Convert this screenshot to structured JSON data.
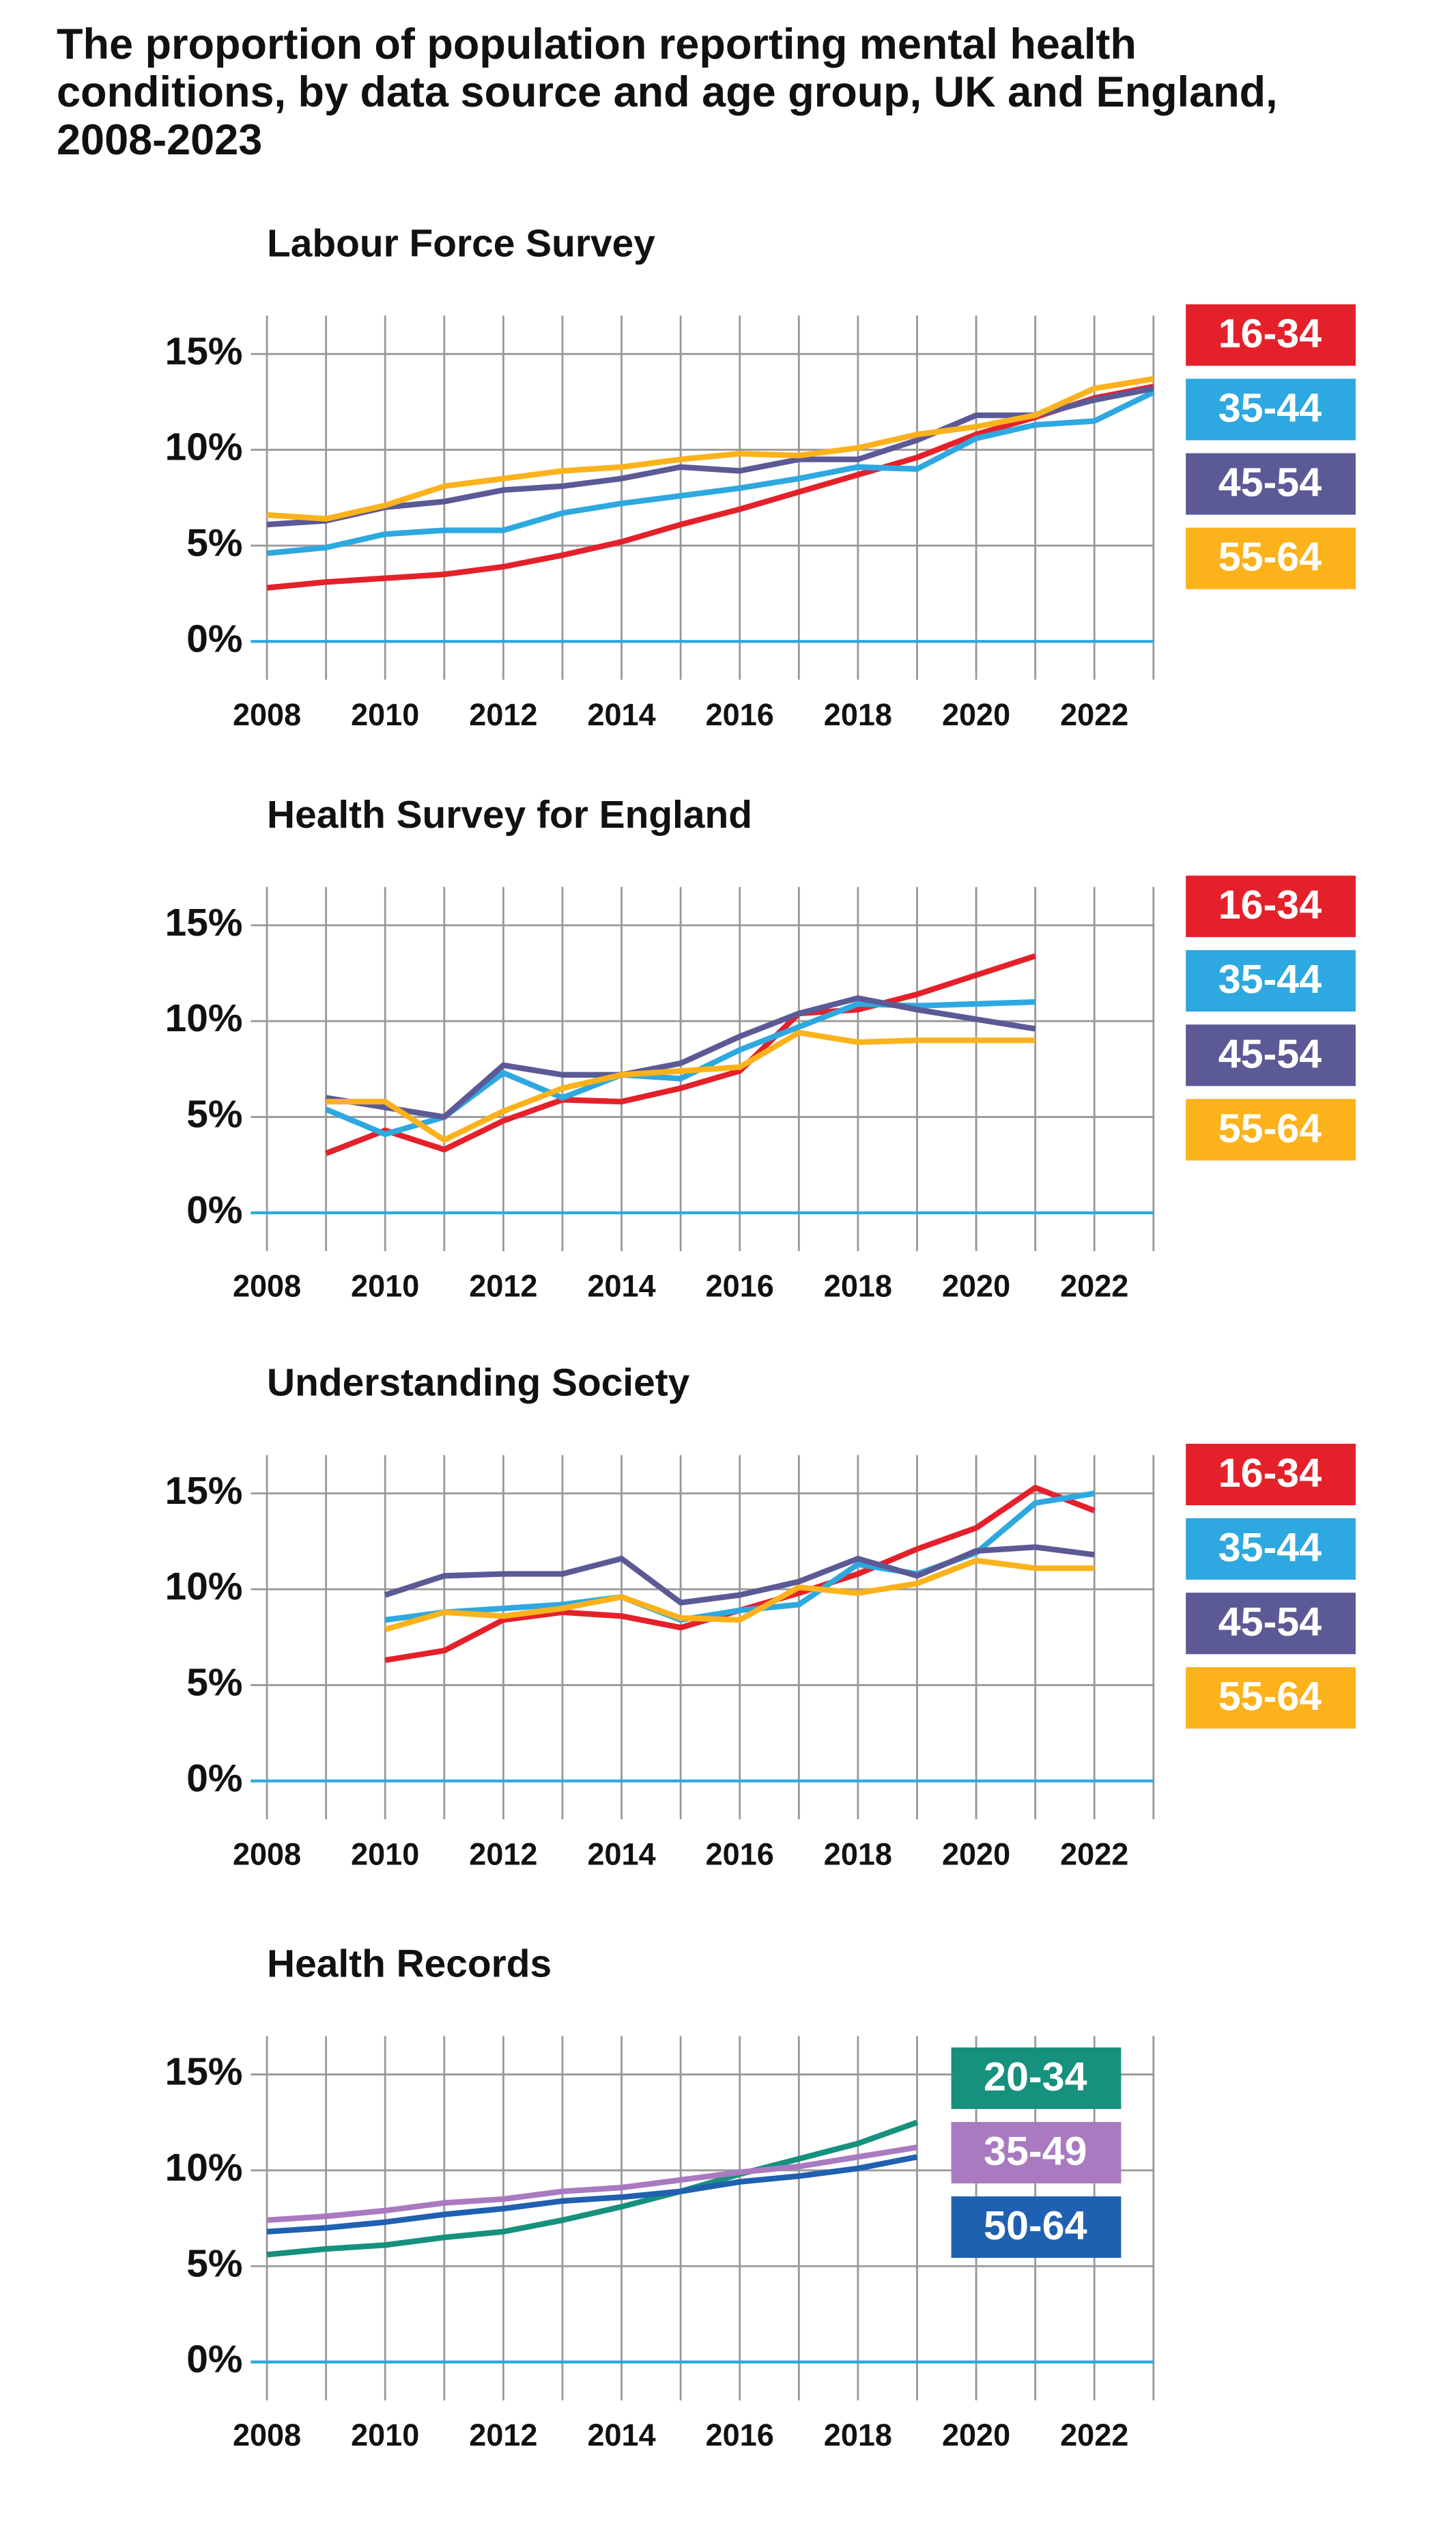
{
  "title": "The proportion of population reporting mental health conditions, by data source and age group, UK and England, 2008-2023",
  "chart_data": [
    {
      "type": "line",
      "title": "Labour Force Survey",
      "x": [
        2008,
        2009,
        2010,
        2011,
        2012,
        2013,
        2014,
        2015,
        2016,
        2017,
        2018,
        2019,
        2020,
        2021,
        2022,
        2023
      ],
      "xlim": [
        2008,
        2023
      ],
      "xticks": [
        2008,
        2010,
        2012,
        2014,
        2016,
        2018,
        2020,
        2022
      ],
      "ylim": [
        -2,
        17
      ],
      "yticks": [
        {
          "value": 0,
          "label": "0%"
        },
        {
          "value": 5,
          "label": "5%"
        },
        {
          "value": 10,
          "label": "10%"
        },
        {
          "value": 15,
          "label": "15%"
        }
      ],
      "grid": true,
      "legend": "right",
      "series": [
        {
          "name": "16-34",
          "color": "#e4212b",
          "values": [
            2.8,
            3.1,
            3.3,
            3.5,
            3.9,
            4.5,
            5.2,
            6.1,
            6.9,
            7.8,
            8.7,
            9.6,
            10.8,
            11.7,
            12.7,
            13.3
          ]
        },
        {
          "name": "35-44",
          "color": "#2ea8e0",
          "values": [
            4.6,
            4.9,
            5.6,
            5.8,
            5.8,
            6.7,
            7.2,
            7.6,
            8.0,
            8.5,
            9.1,
            9.0,
            10.6,
            11.3,
            11.5,
            13.0
          ]
        },
        {
          "name": "45-54",
          "color": "#5b5a96",
          "values": [
            6.1,
            6.3,
            7.0,
            7.3,
            7.9,
            8.1,
            8.5,
            9.1,
            8.9,
            9.5,
            9.5,
            10.5,
            11.8,
            11.8,
            12.6,
            13.2
          ]
        },
        {
          "name": "55-64",
          "color": "#fbb21b",
          "values": [
            6.6,
            6.4,
            7.1,
            8.1,
            8.5,
            8.9,
            9.1,
            9.5,
            9.8,
            9.7,
            10.1,
            10.8,
            11.2,
            11.8,
            13.2,
            13.7
          ]
        }
      ]
    },
    {
      "type": "line",
      "title": "Health Survey for England",
      "x": [
        2009,
        2010,
        2011,
        2012,
        2013,
        2014,
        2015,
        2016,
        2017,
        2018,
        2019,
        2020,
        2021
      ],
      "xlim": [
        2008,
        2023
      ],
      "xticks": [
        2008,
        2010,
        2012,
        2014,
        2016,
        2018,
        2020,
        2022
      ],
      "ylim": [
        -2,
        17
      ],
      "yticks": [
        {
          "value": 0,
          "label": "0%"
        },
        {
          "value": 5,
          "label": "5%"
        },
        {
          "value": 10,
          "label": "10%"
        },
        {
          "value": 15,
          "label": "15%"
        }
      ],
      "grid": true,
      "legend": "right",
      "series": [
        {
          "name": "16-34",
          "color": "#e4212b",
          "values": [
            3.1,
            4.3,
            3.3,
            4.8,
            5.9,
            5.8,
            6.5,
            7.4,
            10.4,
            10.6,
            11.4,
            12.4,
            13.4
          ]
        },
        {
          "name": "35-44",
          "color": "#2ea8e0",
          "values": [
            5.4,
            4.1,
            5.0,
            7.3,
            6.0,
            7.2,
            7.0,
            8.5,
            9.7,
            10.9,
            10.8,
            10.9,
            11.0
          ]
        },
        {
          "name": "45-54",
          "color": "#5b5a96",
          "values": [
            6.0,
            5.5,
            5.0,
            7.7,
            7.2,
            7.2,
            7.8,
            9.2,
            10.4,
            11.2,
            10.6,
            10.1,
            9.6
          ]
        },
        {
          "name": "55-64",
          "color": "#fbb21b",
          "values": [
            5.8,
            5.8,
            3.8,
            5.3,
            6.5,
            7.2,
            7.4,
            7.6,
            9.4,
            8.9,
            9.0,
            9.0,
            9.0
          ]
        }
      ]
    },
    {
      "type": "line",
      "title": "Understanding Society",
      "x": [
        2010,
        2011,
        2012,
        2013,
        2014,
        2015,
        2016,
        2017,
        2018,
        2019,
        2020,
        2021,
        2022
      ],
      "xlim": [
        2008,
        2023
      ],
      "xticks": [
        2008,
        2010,
        2012,
        2014,
        2016,
        2018,
        2020,
        2022
      ],
      "ylim": [
        -2,
        17
      ],
      "yticks": [
        {
          "value": 0,
          "label": "0%"
        },
        {
          "value": 5,
          "label": "5%"
        },
        {
          "value": 10,
          "label": "10%"
        },
        {
          "value": 15,
          "label": "15%"
        }
      ],
      "grid": true,
      "legend": "right",
      "series": [
        {
          "name": "16-34",
          "color": "#e4212b",
          "values": [
            6.3,
            6.8,
            8.4,
            8.8,
            8.6,
            8.0,
            8.9,
            9.8,
            10.8,
            12.1,
            13.2,
            15.3,
            14.1
          ]
        },
        {
          "name": "35-44",
          "color": "#2ea8e0",
          "values": [
            8.4,
            8.8,
            9.0,
            9.2,
            9.6,
            8.4,
            8.9,
            9.2,
            11.3,
            10.8,
            11.9,
            14.5,
            15.0
          ]
        },
        {
          "name": "45-54",
          "color": "#5b5a96",
          "values": [
            9.7,
            10.7,
            10.8,
            10.8,
            11.6,
            9.3,
            9.7,
            10.4,
            11.6,
            10.7,
            12.0,
            12.2,
            11.8
          ]
        },
        {
          "name": "55-64",
          "color": "#fbb21b",
          "values": [
            7.9,
            8.8,
            8.6,
            9.0,
            9.6,
            8.5,
            8.4,
            10.1,
            9.8,
            10.3,
            11.5,
            11.1,
            11.1
          ]
        }
      ]
    },
    {
      "type": "line",
      "title": "Health Records",
      "x": [
        2008,
        2009,
        2010,
        2011,
        2012,
        2013,
        2014,
        2015,
        2016,
        2017,
        2018,
        2019
      ],
      "xlim": [
        2008,
        2023
      ],
      "xticks": [
        2008,
        2010,
        2012,
        2014,
        2016,
        2018,
        2020,
        2022
      ],
      "ylim": [
        -2,
        17
      ],
      "yticks": [
        {
          "value": 0,
          "label": "0%"
        },
        {
          "value": 5,
          "label": "5%"
        },
        {
          "value": 10,
          "label": "10%"
        },
        {
          "value": 15,
          "label": "15%"
        }
      ],
      "grid": true,
      "legend": "inside right",
      "series": [
        {
          "name": "20-34",
          "color": "#15917d",
          "values": [
            5.6,
            5.9,
            6.1,
            6.5,
            6.8,
            7.4,
            8.1,
            8.9,
            9.8,
            10.6,
            11.4,
            12.5
          ]
        },
        {
          "name": "35-49",
          "color": "#a97ac0",
          "values": [
            7.4,
            7.6,
            7.9,
            8.3,
            8.5,
            8.9,
            9.1,
            9.5,
            9.9,
            10.2,
            10.7,
            11.2
          ]
        },
        {
          "name": "50-64",
          "color": "#2060b0",
          "values": [
            6.8,
            7.0,
            7.3,
            7.7,
            8.0,
            8.4,
            8.6,
            8.9,
            9.4,
            9.7,
            10.1,
            10.7
          ]
        }
      ]
    }
  ]
}
